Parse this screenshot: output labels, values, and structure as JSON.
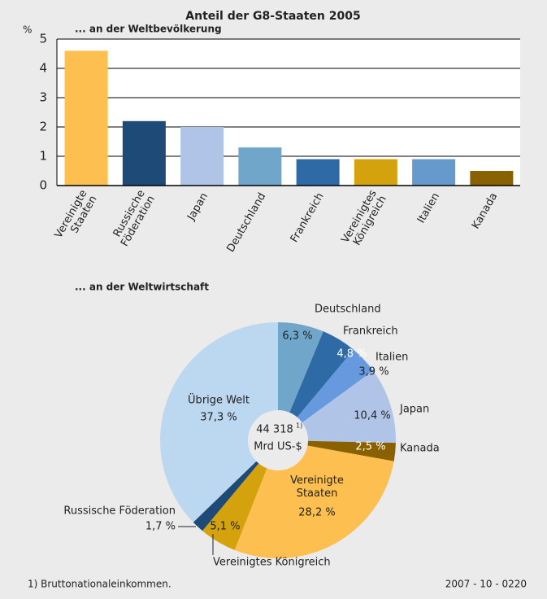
{
  "title": "Anteil der G8-Staaten 2005",
  "chart_data": [
    {
      "type": "bar",
      "subtitle": "... an der Weltbevölkerung",
      "y_label": "%",
      "categories": [
        "Vereinigte Staaten",
        "Russische Föderation",
        "Japan",
        "Deutschland",
        "Frankreich",
        "Vereinigtes Königreich",
        "Italien",
        "Kanada"
      ],
      "values": [
        4.6,
        2.2,
        2.0,
        1.3,
        0.9,
        0.9,
        0.9,
        0.5
      ],
      "colors": [
        "#fdbf4f",
        "#1e4a78",
        "#b0c4e8",
        "#6fa6c9",
        "#2e6ba6",
        "#d4a20c",
        "#6699cc",
        "#8a6100"
      ],
      "ylim": [
        0,
        5
      ],
      "yticks": [
        0,
        1,
        2,
        3,
        4,
        5
      ],
      "grid": true
    },
    {
      "type": "pie",
      "subtitle": "... an der Weltwirtschaft",
      "categories": [
        "Deutschland",
        "Frankreich",
        "Italien",
        "Japan",
        "Kanada",
        "Vereinigte Staaten",
        "Vereinigtes Königreich",
        "Russische Föderation",
        "Übrige Welt"
      ],
      "values": [
        6.3,
        4.8,
        3.9,
        10.4,
        2.5,
        28.2,
        5.1,
        1.7,
        37.3
      ],
      "value_labels": [
        "6,3 %",
        "4,8 %",
        "3,9 %",
        "10,4 %",
        "2,5 %",
        "28,2 %",
        "5,1 %",
        "1,7 %",
        "37,3 %"
      ],
      "colors": [
        "#6fa6c9",
        "#2e6ba6",
        "#6699dd",
        "#b0c4e8",
        "#8a6100",
        "#fdbf4f",
        "#d4a20c",
        "#1e4a78",
        "#bcd8f0"
      ],
      "center_value": "44 318",
      "center_note": "1)",
      "center_unit": "Mrd US-$"
    }
  ],
  "footnote": "1) Bruttonationaleinkommen.",
  "code": "2007 - 10 - 0220"
}
